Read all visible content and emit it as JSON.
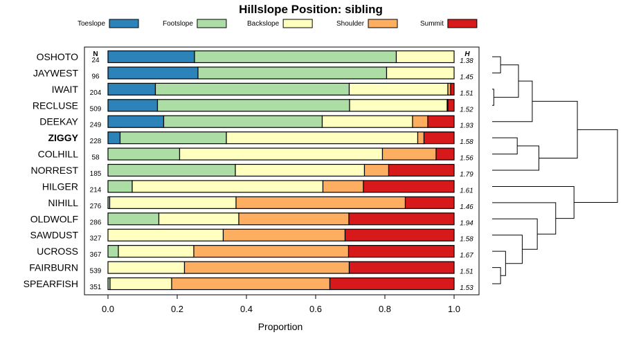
{
  "chart_data": {
    "type": "bar",
    "orientation": "horizontal",
    "stacked": true,
    "title": "Hillslope Position: sibling",
    "xlabel": "Proportion",
    "xlim": [
      0,
      1
    ],
    "xticks": [
      "0.0",
      "0.2",
      "0.4",
      "0.6",
      "0.8",
      "1.0"
    ],
    "n_header": "N",
    "h_header": "H",
    "legend": [
      {
        "name": "Toeslope",
        "color": "#2b83ba"
      },
      {
        "name": "Footslope",
        "color": "#abdda4"
      },
      {
        "name": "Backslope",
        "color": "#ffffbf"
      },
      {
        "name": "Shoulder",
        "color": "#fdae61"
      },
      {
        "name": "Summit",
        "color": "#d7191c"
      }
    ],
    "highlight": "ZIGGY",
    "rows": [
      {
        "name": "OSHOTO",
        "n": "24",
        "h": "1.38",
        "values": [
          0.25,
          0.583,
          0.167,
          0,
          0
        ]
      },
      {
        "name": "JAYWEST",
        "n": "96",
        "h": "1.45",
        "values": [
          0.26,
          0.545,
          0.195,
          0,
          0
        ]
      },
      {
        "name": "IWAIT",
        "n": "204",
        "h": "1.51",
        "values": [
          0.137,
          0.56,
          0.285,
          0.008,
          0.01
        ]
      },
      {
        "name": "RECLUSE",
        "n": "509",
        "h": "1.52",
        "values": [
          0.143,
          0.555,
          0.282,
          0.002,
          0.018
        ]
      },
      {
        "name": "DEEKAY",
        "n": "249",
        "h": "1.93",
        "values": [
          0.161,
          0.458,
          0.261,
          0.044,
          0.076
        ]
      },
      {
        "name": "ZIGGY",
        "n": "228",
        "h": "1.58",
        "values": [
          0.035,
          0.307,
          0.553,
          0.018,
          0.087
        ]
      },
      {
        "name": "COLHILL",
        "n": "58",
        "h": "1.56",
        "values": [
          0,
          0.207,
          0.586,
          0.155,
          0.052
        ]
      },
      {
        "name": "NORREST",
        "n": "185",
        "h": "1.79",
        "values": [
          0,
          0.368,
          0.373,
          0.07,
          0.189
        ]
      },
      {
        "name": "HILGER",
        "n": "214",
        "h": "1.61",
        "values": [
          0,
          0.07,
          0.551,
          0.117,
          0.262
        ]
      },
      {
        "name": "NIHILL",
        "n": "276",
        "h": "1.46",
        "values": [
          0,
          0.005,
          0.365,
          0.489,
          0.141
        ]
      },
      {
        "name": "OLDWOLF",
        "n": "286",
        "h": "1.94",
        "values": [
          0,
          0.147,
          0.231,
          0.318,
          0.304
        ]
      },
      {
        "name": "SAWDUST",
        "n": "327",
        "h": "1.58",
        "values": [
          0,
          0,
          0.333,
          0.352,
          0.315
        ]
      },
      {
        "name": "UCROSS",
        "n": "367",
        "h": "1.67",
        "values": [
          0,
          0.03,
          0.218,
          0.447,
          0.305
        ]
      },
      {
        "name": "FAIRBURN",
        "n": "539",
        "h": "1.51",
        "values": [
          0,
          0,
          0.221,
          0.476,
          0.303
        ]
      },
      {
        "name": "SPEARFISH",
        "n": "351",
        "h": "1.53",
        "values": [
          0,
          0.006,
          0.178,
          0.457,
          0.359
        ]
      }
    ],
    "dendrogram": {
      "leaves": [
        "OSHOTO",
        "JAYWEST",
        "IWAIT",
        "RECLUSE",
        "DEEKAY",
        "ZIGGY",
        "COLHILL",
        "NORREST",
        "HILGER",
        "NIHILL",
        "OLDWOLF",
        "SAWDUST",
        "UCROSS",
        "FAIRBURN",
        "SPEARFISH"
      ],
      "merges": [
        {
          "a": 0,
          "b": 1,
          "h": 0.067
        },
        {
          "a": 2,
          "b": 3,
          "h": 0.013
        },
        {
          "a": -1,
          "b": -2,
          "h": 0.21
        },
        {
          "a": -3,
          "b": 4,
          "h": 0.32
        },
        {
          "a": 5,
          "b": 6,
          "h": 0.2
        },
        {
          "a": -5,
          "b": 7,
          "h": 0.373
        },
        {
          "a": -4,
          "b": -6,
          "h": 0.68
        },
        {
          "a": 13,
          "b": 14,
          "h": 0.067
        },
        {
          "a": 12,
          "b": -8,
          "h": 0.107
        },
        {
          "a": -9,
          "b": 11,
          "h": 0.24
        },
        {
          "a": -10,
          "b": 10,
          "h": 0.36
        },
        {
          "a": -11,
          "b": 9,
          "h": 0.507
        },
        {
          "a": -12,
          "b": 8,
          "h": 0.653
        },
        {
          "a": -7,
          "b": -13,
          "h": 1.0
        }
      ]
    }
  }
}
